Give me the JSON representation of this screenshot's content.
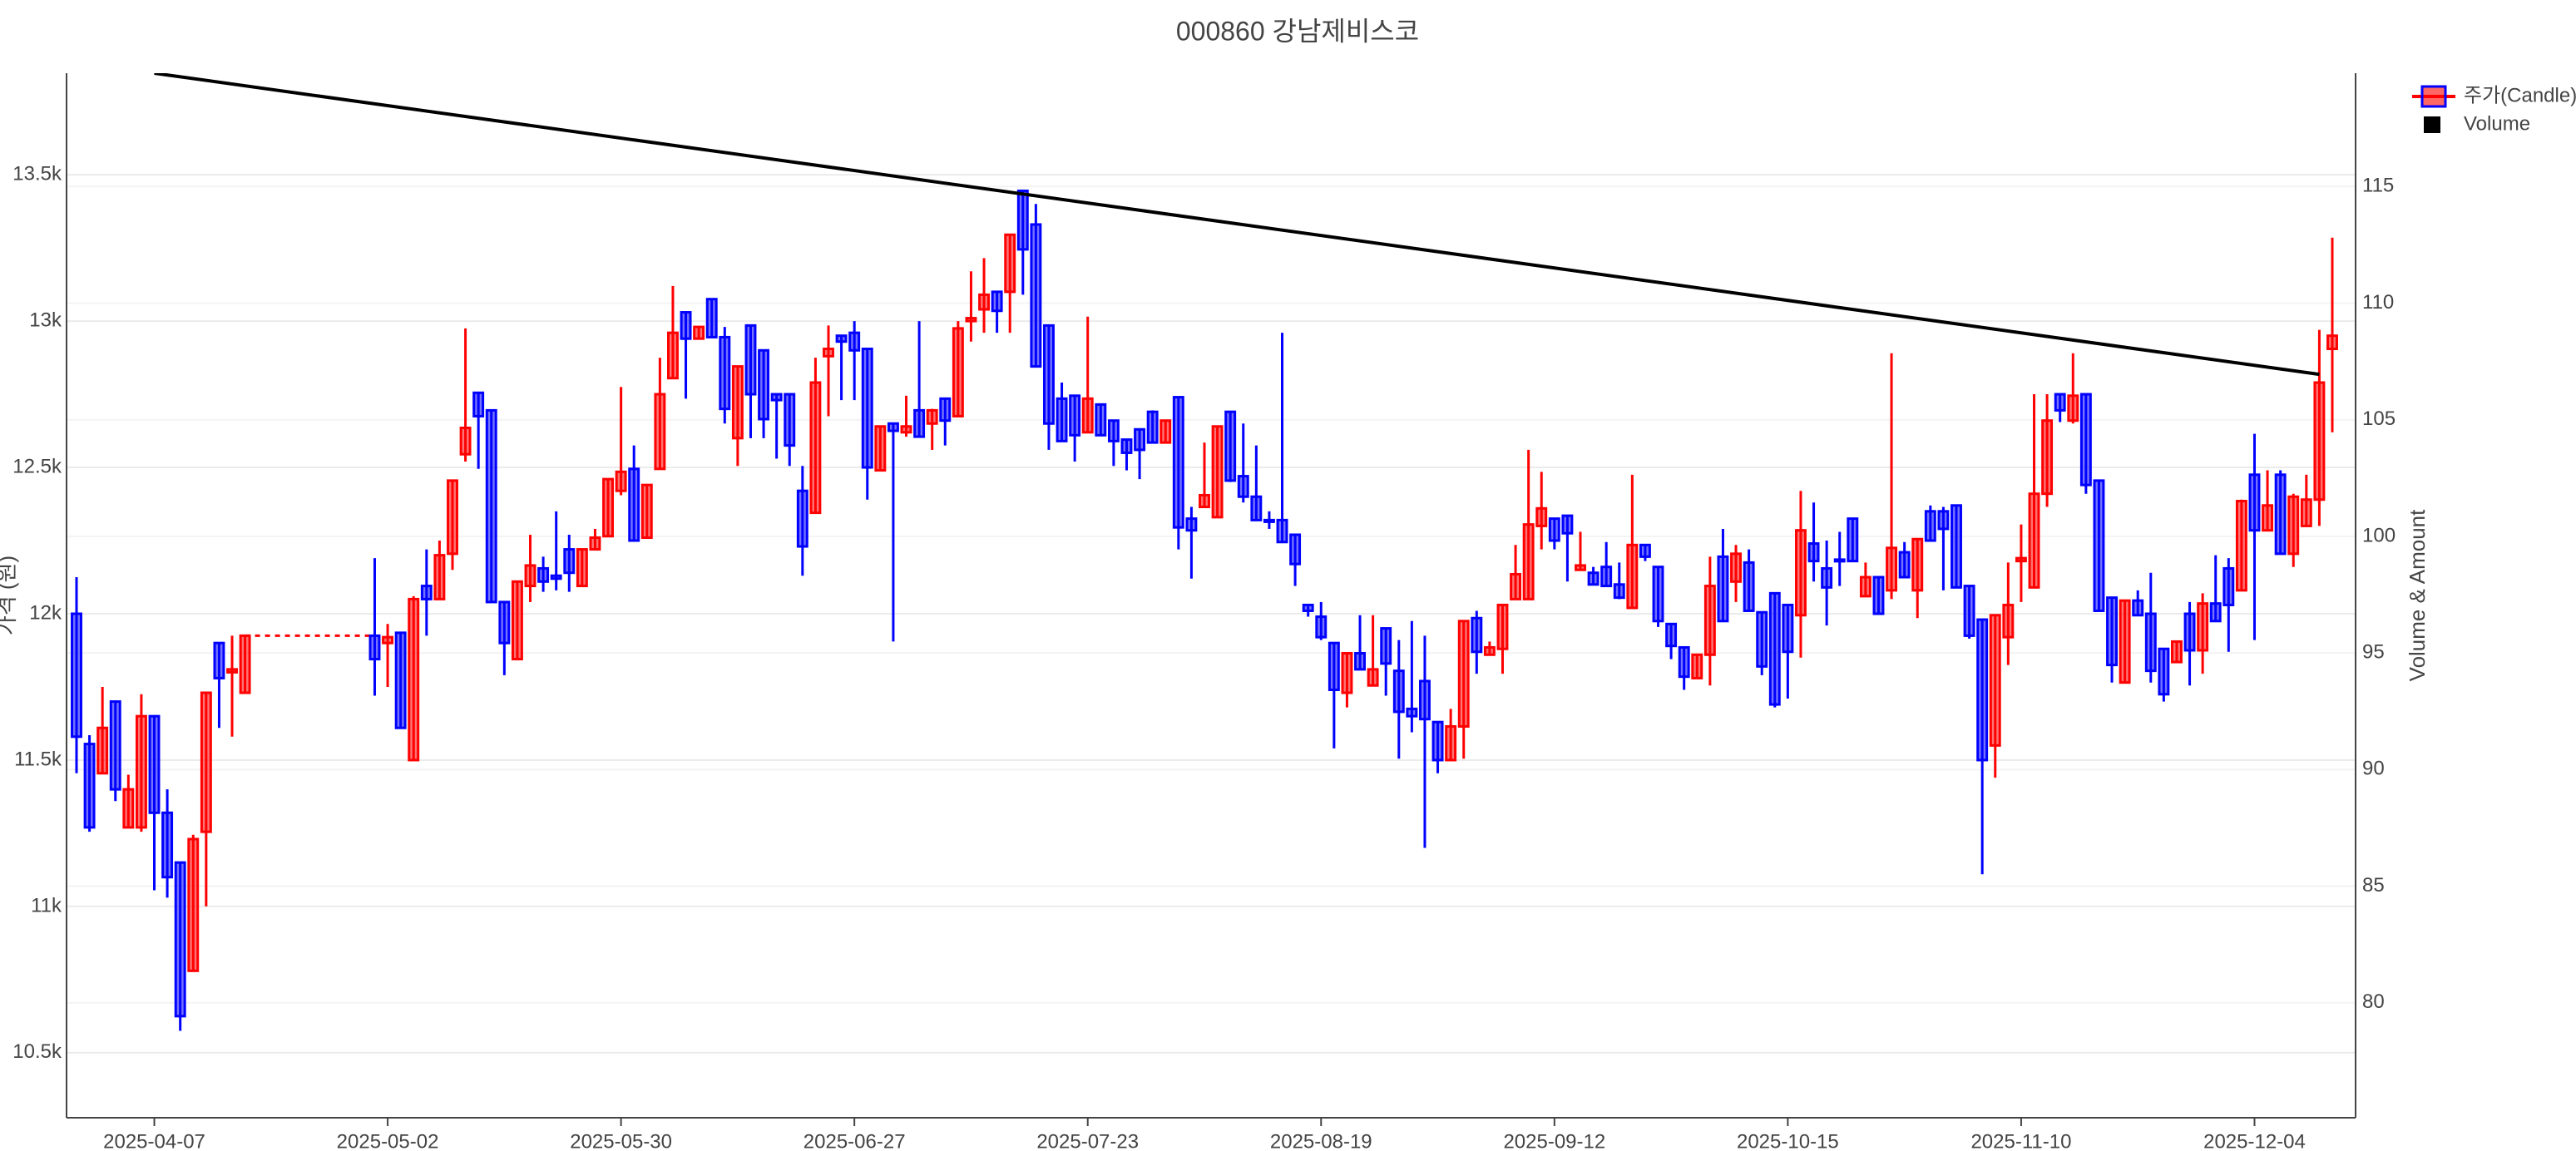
{
  "chart_data": {
    "type": "candlestick",
    "title": "000860 강남제비스코",
    "ylabel": "가격 (원)",
    "y2label": "Volume & Amount",
    "categories": [
      null,
      null,
      null,
      null,
      null,
      null,
      "2025-04-07",
      null,
      null,
      null,
      null,
      null,
      null,
      null,
      null,
      null,
      null,
      null,
      null,
      null,
      null,
      null,
      null,
      null,
      "2025-05-02",
      null,
      null,
      null,
      null,
      null,
      null,
      null,
      null,
      null,
      null,
      null,
      null,
      null,
      null,
      null,
      null,
      null,
      "2025-05-30",
      null,
      null,
      null,
      null,
      null,
      null,
      null,
      null,
      null,
      null,
      null,
      null,
      null,
      null,
      null,
      null,
      null,
      "2025-06-27",
      null,
      null,
      null,
      null,
      null,
      null,
      null,
      null,
      null,
      null,
      null,
      null,
      null,
      null,
      null,
      null,
      null,
      "2025-07-23",
      null,
      null,
      null,
      null,
      null,
      null,
      null,
      null,
      null,
      null,
      null,
      null,
      null,
      null,
      null,
      null,
      null,
      "2025-08-19",
      null,
      null,
      null,
      null,
      null,
      null,
      null,
      null,
      null,
      null,
      null,
      null,
      null,
      null,
      null,
      null,
      null,
      "2025-09-12",
      null,
      null,
      null,
      null,
      null,
      null,
      null,
      null,
      null,
      null,
      null,
      null,
      null,
      null,
      null,
      null,
      null,
      "2025-10-15",
      null,
      null,
      null,
      null,
      null,
      null,
      null,
      null,
      null,
      null,
      null,
      null,
      null,
      null,
      null,
      null,
      null,
      "2025-11-10",
      null,
      null,
      null,
      null,
      null,
      null,
      null,
      null,
      null,
      null,
      null,
      null,
      null,
      null,
      null,
      null,
      null,
      "2025-12-04",
      null,
      null,
      null,
      null,
      null,
      null
    ],
    "series": [
      {
        "name": "주가(Candle)",
        "increasing_color": "#ff0000",
        "decreasing_color": "#0000ff",
        "open": [
          12000,
          11555,
          11455,
          11700,
          11270,
          11270,
          11650,
          11320,
          11150,
          10780,
          11255,
          11900,
          11800,
          11730,
          null,
          null,
          null,
          null,
          null,
          null,
          null,
          null,
          null,
          11925,
          11900,
          11935,
          11500,
          12095,
          12050,
          12205,
          12545,
          12755,
          12695,
          12040,
          11845,
          12095,
          12155,
          12130,
          12220,
          12095,
          12220,
          12265,
          12420,
          12495,
          12260,
          12495,
          12805,
          13030,
          12940,
          13075,
          12945,
          12600,
          12985,
          12900,
          12750,
          12750,
          12420,
          12345,
          12880,
          12950,
          12960,
          12905,
          12490,
          12650,
          12620,
          12695,
          12650,
          12735,
          12675,
          13000,
          13040,
          13100,
          13100,
          13445,
          13330,
          12985,
          12735,
          12745,
          12620,
          12715,
          12660,
          12595,
          12630,
          12690,
          12585,
          12740,
          12325,
          12365,
          12330,
          12690,
          12470,
          12400,
          12320,
          12320,
          12270,
          12030,
          11990,
          11900,
          11730,
          11865,
          11755,
          11950,
          11805,
          11675,
          11770,
          11630,
          11500,
          11615,
          11985,
          11860,
          11880,
          12050,
          12050,
          12300,
          12325,
          12335,
          12150,
          12140,
          12160,
          12100,
          12020,
          12235,
          12160,
          11965,
          11885,
          11780,
          11860,
          12195,
          12110,
          12175,
          12005,
          12070,
          12030,
          11995,
          12240,
          12155,
          12185,
          12325,
          12060,
          12125,
          12080,
          12210,
          12080,
          12350,
          12350,
          12370,
          12095,
          11980,
          11550,
          11920,
          12180,
          12090,
          12410,
          12750,
          12660,
          12750,
          12455,
          12055,
          11765,
          12045,
          12000,
          11880,
          11835,
          12000,
          11875,
          12035,
          12155,
          12080,
          12475,
          12285,
          12475,
          12205,
          12300,
          12390,
          12905
        ],
        "high": [
          12125,
          11585,
          11750,
          11700,
          11450,
          11725,
          11650,
          11400,
          11150,
          11245,
          11730,
          11900,
          11925,
          11925,
          null,
          null,
          null,
          null,
          null,
          null,
          null,
          null,
          null,
          12190,
          11965,
          11935,
          12060,
          12220,
          12250,
          12455,
          12975,
          12755,
          12695,
          12040,
          12110,
          12270,
          12195,
          12350,
          12270,
          12220,
          12290,
          12460,
          12775,
          12575,
          12440,
          12875,
          13120,
          13030,
          12980,
          13075,
          12980,
          12845,
          12985,
          12900,
          12750,
          12750,
          12505,
          12875,
          12985,
          12950,
          13000,
          12905,
          12640,
          12650,
          12745,
          13000,
          12700,
          12735,
          13000,
          13170,
          13215,
          13100,
          13295,
          13445,
          13400,
          12985,
          12790,
          12745,
          13015,
          12715,
          12660,
          12595,
          12630,
          12695,
          12660,
          12740,
          12365,
          12585,
          12640,
          12690,
          12650,
          12575,
          12350,
          12960,
          12270,
          12030,
          12040,
          11900,
          11865,
          11995,
          11995,
          11950,
          11910,
          11975,
          11925,
          11630,
          11675,
          11975,
          12010,
          11905,
          12030,
          12235,
          12560,
          12485,
          12325,
          12335,
          12280,
          12160,
          12245,
          12175,
          12475,
          12235,
          12160,
          11965,
          11885,
          11860,
          12195,
          12290,
          12235,
          12220,
          12005,
          12070,
          12030,
          12420,
          12380,
          12250,
          12280,
          12325,
          12175,
          12125,
          12890,
          12245,
          12255,
          12370,
          12365,
          12370,
          12095,
          11980,
          11995,
          12175,
          12305,
          12750,
          12750,
          12750,
          12890,
          12750,
          12455,
          12055,
          12045,
          12080,
          12140,
          11880,
          11905,
          12040,
          12070,
          12200,
          12190,
          12390,
          12615,
          12490,
          12490,
          12410,
          12475,
          12970,
          13285
        ],
        "low": [
          11455,
          11255,
          11455,
          11360,
          11270,
          11255,
          11055,
          11030,
          10575,
          10780,
          11000,
          11610,
          11580,
          11730,
          null,
          null,
          null,
          null,
          null,
          null,
          null,
          null,
          null,
          11720,
          11750,
          11610,
          11500,
          11925,
          12050,
          12150,
          12520,
          12495,
          12040,
          11790,
          11845,
          12040,
          12075,
          12080,
          12075,
          12095,
          12220,
          12265,
          12405,
          12250,
          12260,
          12495,
          12805,
          12735,
          12940,
          12945,
          12650,
          12505,
          12600,
          12600,
          12530,
          12505,
          12130,
          12345,
          12675,
          12730,
          12730,
          12390,
          12490,
          11905,
          12605,
          12605,
          12560,
          12575,
          12675,
          12930,
          12960,
          12960,
          12960,
          13090,
          12845,
          12560,
          12590,
          12520,
          12620,
          12610,
          12505,
          12490,
          12460,
          12585,
          12585,
          12220,
          12120,
          12365,
          12330,
          12450,
          12380,
          12320,
          12290,
          12245,
          12095,
          11990,
          11910,
          11540,
          11680,
          11810,
          11755,
          11720,
          11505,
          11595,
          11200,
          11455,
          11500,
          11505,
          11795,
          11860,
          11795,
          12050,
          12050,
          12220,
          12220,
          12110,
          12150,
          12100,
          12095,
          12050,
          12020,
          12180,
          11955,
          11845,
          11740,
          11780,
          11755,
          11975,
          12040,
          12010,
          11790,
          11680,
          11710,
          11850,
          12110,
          11960,
          12095,
          12180,
          12060,
          12000,
          12050,
          12125,
          11985,
          12250,
          12080,
          12090,
          11915,
          11110,
          11440,
          11825,
          12040,
          12090,
          12365,
          12655,
          12650,
          12410,
          12010,
          11765,
          11765,
          11995,
          11765,
          11700,
          11835,
          11755,
          11795,
          11975,
          11870,
          12080,
          11910,
          12285,
          12205,
          12160,
          12300,
          12300,
          12620
        ],
        "close": [
          11580,
          11270,
          11610,
          11400,
          11400,
          11650,
          11320,
          11100,
          10625,
          11230,
          11730,
          11780,
          11810,
          11925,
          null,
          null,
          null,
          null,
          null,
          null,
          null,
          null,
          null,
          11845,
          11920,
          11610,
          12050,
          12050,
          12200,
          12455,
          12635,
          12675,
          12040,
          11900,
          12110,
          12165,
          12110,
          12120,
          12140,
          12220,
          12260,
          12460,
          12485,
          12250,
          12440,
          12750,
          12960,
          12940,
          12980,
          12945,
          12700,
          12845,
          12750,
          12665,
          12730,
          12575,
          12230,
          12790,
          12905,
          12930,
          12900,
          12500,
          12640,
          12625,
          12640,
          12605,
          12695,
          12660,
          12975,
          13010,
          13090,
          13035,
          13295,
          13245,
          12845,
          12650,
          12590,
          12610,
          12735,
          12610,
          12590,
          12550,
          12560,
          12585,
          12660,
          12295,
          12285,
          12405,
          12640,
          12455,
          12400,
          12320,
          12315,
          12245,
          12170,
          12010,
          11920,
          11740,
          11865,
          11810,
          11810,
          11830,
          11665,
          11650,
          11640,
          11500,
          11615,
          11975,
          11870,
          11885,
          12030,
          12135,
          12305,
          12360,
          12250,
          12275,
          12165,
          12100,
          12095,
          12055,
          12235,
          12195,
          11975,
          11890,
          11785,
          11860,
          12095,
          11975,
          12205,
          12010,
          11820,
          11690,
          11870,
          12285,
          12180,
          12090,
          12180,
          12180,
          12125,
          12000,
          12225,
          12125,
          12255,
          12250,
          12290,
          12090,
          11925,
          11500,
          11995,
          12030,
          12190,
          12410,
          12660,
          12695,
          12745,
          12440,
          12010,
          11825,
          12045,
          11995,
          11805,
          11725,
          11905,
          11875,
          12035,
          11975,
          12030,
          12385,
          12285,
          12370,
          12205,
          12400,
          12390,
          12790,
          12950
        ]
      },
      {
        "name": "Volume",
        "color": "#000000",
        "axis": "y2"
      }
    ],
    "trendline": {
      "x": [
        6,
        173
      ],
      "y": [
        13847,
        12818
      ],
      "color": "#000000"
    },
    "ylim": [
      10278,
      13847
    ],
    "yticks": [
      {
        "value": 10500,
        "label": "10.5k"
      },
      {
        "value": 11000,
        "label": "11k"
      },
      {
        "value": 11500,
        "label": "11.5k"
      },
      {
        "value": 12000,
        "label": "12k"
      },
      {
        "value": 12500,
        "label": "12.5k"
      },
      {
        "value": 13000,
        "label": "13k"
      },
      {
        "value": 13500,
        "label": "13.5k"
      }
    ],
    "y2lim": [
      75.07,
      119.86
    ],
    "y2ticks": [
      80,
      85,
      90,
      95,
      100,
      105,
      110,
      115
    ],
    "grid": true
  }
}
